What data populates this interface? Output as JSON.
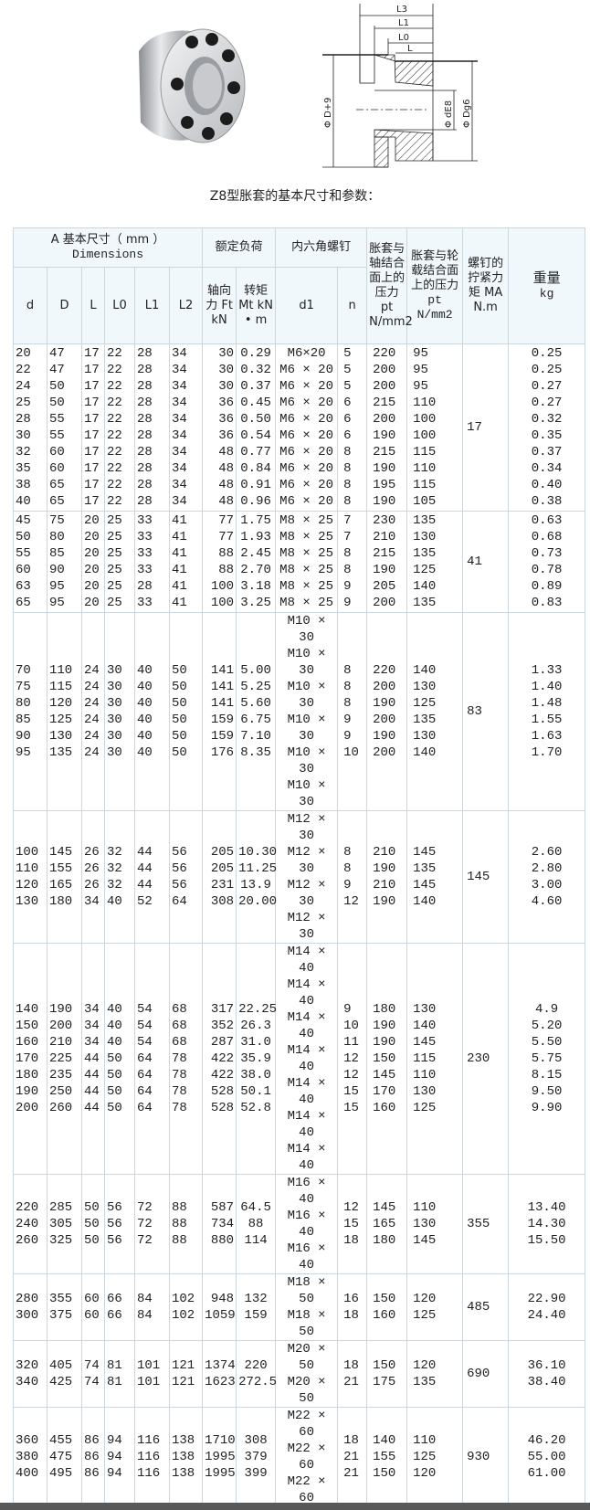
{
  "images": {
    "photo": "expansion-sleeve-photo",
    "drawing": {
      "labels": {
        "L3": "L3",
        "L1": "L1",
        "L0": "L0",
        "L": "L",
        "D": "Φ D+9",
        "d": "Φ dE8",
        "Dg": "Φ Dg6"
      }
    }
  },
  "caption": "Z8型胀套的基本尺寸和参数：",
  "table": {
    "header": {
      "dims_group": "A 基本尺寸（ mm ）",
      "dims_group_en": "Dimensions",
      "load_group": "额定负荷",
      "bolt_group": "内六角螺钉",
      "pt_shaft": "胀套与轴结合面上的压力 pt N/mm2",
      "pt_hub": "胀套与轮载结合面上的压力",
      "pt_hub_unit": "pt N/mm2",
      "ma": "螺钉的拧紧力矩 MA N.m",
      "weight": "重量",
      "weight_unit": "kg",
      "d": "d",
      "D": "D",
      "L": "L",
      "L0": "L0",
      "L1": "L1",
      "L2": "L2",
      "ft": "轴向力 Ft kN",
      "mt": "转矩 Mt kN • m",
      "d1": "d1",
      "n": "n"
    },
    "columns": [
      "d",
      "D",
      "L",
      "L0",
      "L1",
      "L2",
      "Ft",
      "Mt",
      "d1",
      "n",
      "pt_shaft",
      "pt_hub",
      "MA",
      "kg"
    ],
    "groups": [
      {
        "ma": "17",
        "d1": [
          "M6×20",
          "M6 × 20",
          "M6 × 20",
          "M6 × 20",
          "M6 × 20",
          "M6 × 20",
          "M6 × 20",
          "M6 × 20",
          "M6 × 20",
          "M6 × 20"
        ],
        "rows": [
          [
            "20",
            "47",
            "17",
            "22",
            "28",
            "34",
            "30",
            "0.29",
            "5",
            "220",
            "95",
            "0.25"
          ],
          [
            "22",
            "47",
            "17",
            "22",
            "28",
            "34",
            "30",
            "0.32",
            "5",
            "200",
            "95",
            "0.25"
          ],
          [
            "24",
            "50",
            "17",
            "22",
            "28",
            "34",
            "30",
            "0.37",
            "5",
            "200",
            "95",
            "0.27"
          ],
          [
            "25",
            "50",
            "17",
            "22",
            "28",
            "34",
            "36",
            "0.45",
            "6",
            "215",
            "110",
            "0.27"
          ],
          [
            "28",
            "55",
            "17",
            "22",
            "28",
            "34",
            "36",
            "0.50",
            "6",
            "200",
            "100",
            "0.32"
          ],
          [
            "30",
            "55",
            "17",
            "22",
            "28",
            "34",
            "36",
            "0.54",
            "6",
            "190",
            "100",
            "0.35"
          ],
          [
            "32",
            "60",
            "17",
            "22",
            "28",
            "34",
            "48",
            "0.77",
            "8",
            "215",
            "115",
            "0.37"
          ],
          [
            "35",
            "60",
            "17",
            "22",
            "28",
            "34",
            "48",
            "0.84",
            "8",
            "190",
            "110",
            "0.34"
          ],
          [
            "38",
            "65",
            "17",
            "22",
            "28",
            "34",
            "48",
            "0.91",
            "8",
            "195",
            "115",
            "0.40"
          ],
          [
            "40",
            "65",
            "17",
            "22",
            "28",
            "34",
            "48",
            "0.96",
            "8",
            "190",
            "105",
            "0.38"
          ]
        ]
      },
      {
        "ma": "41",
        "d1": [
          "M8 × 25",
          "M8 × 25",
          "M8 × 25",
          "M8 × 25",
          "M8 × 25",
          "M8 × 25"
        ],
        "rows": [
          [
            "45",
            "75",
            "20",
            "25",
            "33",
            "41",
            "77",
            "1.75",
            "7",
            "230",
            "135",
            "0.63"
          ],
          [
            "50",
            "80",
            "20",
            "25",
            "33",
            "41",
            "77",
            "1.93",
            "7",
            "210",
            "130",
            "0.68"
          ],
          [
            "55",
            "85",
            "20",
            "25",
            "33",
            "41",
            "88",
            "2.45",
            "8",
            "215",
            "135",
            "0.73"
          ],
          [
            "60",
            "90",
            "20",
            "25",
            "33",
            "41",
            "88",
            "2.70",
            "8",
            "190",
            "125",
            "0.78"
          ],
          [
            "63",
            "95",
            "20",
            "25",
            "28",
            "41",
            "100",
            "3.18",
            "9",
            "205",
            "140",
            "0.89"
          ],
          [
            "65",
            "95",
            "20",
            "25",
            "33",
            "41",
            "100",
            "3.25",
            "9",
            "200",
            "135",
            "0.83"
          ]
        ]
      },
      {
        "ma": "83",
        "d1": [
          "M10 × 30",
          "M10 × 30",
          "M10 × 30",
          "M10 × 30",
          "M10 × 30",
          "M10 × 30"
        ],
        "rows": [
          [
            "70",
            "110",
            "24",
            "30",
            "40",
            "50",
            "141",
            "5.00",
            "8",
            "220",
            "140",
            "1.33"
          ],
          [
            "75",
            "115",
            "24",
            "30",
            "40",
            "50",
            "141",
            "5.25",
            "8",
            "200",
            "130",
            "1.40"
          ],
          [
            "80",
            "120",
            "24",
            "30",
            "40",
            "50",
            "141",
            "5.60",
            "8",
            "190",
            "125",
            "1.48"
          ],
          [
            "85",
            "125",
            "24",
            "30",
            "40",
            "50",
            "159",
            "6.75",
            "9",
            "200",
            "135",
            "1.55"
          ],
          [
            "90",
            "130",
            "24",
            "30",
            "40",
            "50",
            "159",
            "7.10",
            "9",
            "190",
            "130",
            "1.63"
          ],
          [
            "95",
            "135",
            "24",
            "30",
            "40",
            "50",
            "176",
            "8.35",
            "10",
            "200",
            "140",
            "1.70"
          ]
        ]
      },
      {
        "ma": "145",
        "d1": [
          "M12 × 30",
          "M12 × 30",
          "M12 × 30",
          "M12 × 30"
        ],
        "rows": [
          [
            "100",
            "145",
            "26",
            "32",
            "44",
            "56",
            "205",
            "10.30",
            "8",
            "210",
            "145",
            "2.60"
          ],
          [
            "110",
            "155",
            "26",
            "32",
            "44",
            "56",
            "205",
            "11.25",
            "8",
            "190",
            "135",
            "2.80"
          ],
          [
            "120",
            "165",
            "26",
            "32",
            "44",
            "56",
            "231",
            "13.9",
            "9",
            "210",
            "145",
            "3.00"
          ],
          [
            "130",
            "180",
            "34",
            "40",
            "52",
            "64",
            "308",
            "20.00",
            "12",
            "190",
            "140",
            "4.60"
          ]
        ]
      },
      {
        "ma": "230",
        "d1": [
          "M14 × 40",
          "M14 × 40",
          "M14 × 40",
          "M14 × 40",
          "M14 × 40",
          "M14 × 40",
          "M14 × 40"
        ],
        "rows": [
          [
            "140",
            "190",
            "34",
            "40",
            "54",
            "68",
            "317",
            "22.25",
            "9",
            "180",
            "130",
            "4.9"
          ],
          [
            "150",
            "200",
            "34",
            "40",
            "54",
            "68",
            "352",
            "26.3",
            "10",
            "190",
            "140",
            "5.20"
          ],
          [
            "160",
            "210",
            "34",
            "40",
            "54",
            "68",
            "287",
            "31.0",
            "11",
            "190",
            "145",
            "5.50"
          ],
          [
            "170",
            "225",
            "44",
            "50",
            "64",
            "78",
            "422",
            "35.9",
            "12",
            "150",
            "115",
            "5.75"
          ],
          [
            "180",
            "235",
            "44",
            "50",
            "64",
            "78",
            "422",
            "38.0",
            "12",
            "145",
            "110",
            "8.15"
          ],
          [
            "190",
            "250",
            "44",
            "50",
            "64",
            "78",
            "528",
            "50.1",
            "15",
            "170",
            "130",
            "9.50"
          ],
          [
            "200",
            "260",
            "44",
            "50",
            "64",
            "78",
            "528",
            "52.8",
            "15",
            "160",
            "125",
            "9.90"
          ]
        ]
      },
      {
        "ma": "355",
        "d1": [
          "M16 × 40",
          "M16 × 40",
          "M16 × 40"
        ],
        "rows": [
          [
            "220",
            "285",
            "50",
            "56",
            "72",
            "88",
            "587",
            "64.5",
            "12",
            "145",
            "110",
            "13.40"
          ],
          [
            "240",
            "305",
            "50",
            "56",
            "72",
            "88",
            "734",
            "88",
            "15",
            "165",
            "130",
            "14.30"
          ],
          [
            "260",
            "325",
            "50",
            "56",
            "72",
            "88",
            "880",
            "114",
            "18",
            "180",
            "145",
            "15.50"
          ]
        ]
      },
      {
        "ma": "485",
        "d1": [
          "M18 × 50",
          "M18 × 50"
        ],
        "rows": [
          [
            "280",
            "355",
            "60",
            "66",
            "84",
            "102",
            "948",
            "132",
            "16",
            "150",
            "120",
            "22.90"
          ],
          [
            "300",
            "375",
            "60",
            "66",
            "84",
            "102",
            "1059",
            "159",
            "18",
            "160",
            "125",
            "24.40"
          ]
        ]
      },
      {
        "ma": "690",
        "d1": [
          "M20 × 50",
          "M20 × 50"
        ],
        "rows": [
          [
            "320",
            "405",
            "74",
            "81",
            "101",
            "121",
            "1374",
            "220",
            "18",
            "150",
            "120",
            "36.10"
          ],
          [
            "340",
            "425",
            "74",
            "81",
            "101",
            "121",
            "1623",
            "272.5",
            "21",
            "175",
            "135",
            "38.40"
          ]
        ]
      },
      {
        "ma": "930",
        "d1": [
          "M22 × 60",
          "M22 × 60",
          "M22 × 60"
        ],
        "rows": [
          [
            "360",
            "455",
            "86",
            "94",
            "116",
            "138",
            "1710",
            "308",
            "18",
            "140",
            "110",
            "46.20"
          ],
          [
            "380",
            "475",
            "86",
            "94",
            "116",
            "138",
            "1995",
            "379",
            "21",
            "155",
            "125",
            "55.00"
          ],
          [
            "400",
            "495",
            "86",
            "94",
            "116",
            "138",
            "1995",
            "399",
            "21",
            "150",
            "120",
            "61.00"
          ]
        ]
      }
    ]
  },
  "colors": {
    "header_bg": "#f0f8fc",
    "border": "#cdd6dc",
    "bottom_bar": "#585858"
  }
}
